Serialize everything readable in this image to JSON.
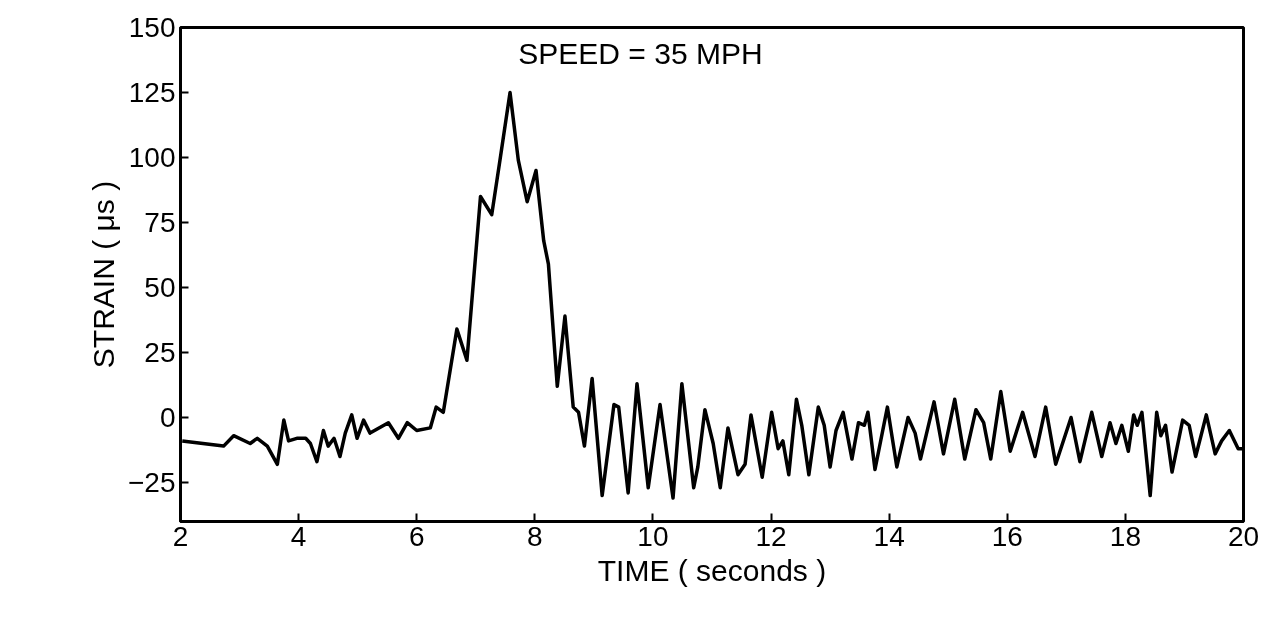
{
  "chart_data": {
    "type": "line",
    "xlabel": "TIME ( seconds )",
    "ylabel": "STRAIN ( μs )",
    "annotations": [
      "SPEED  =  35  MPH"
    ],
    "x": [
      2.03,
      2.73,
      2.9,
      3.18,
      3.3,
      3.47,
      3.64,
      3.75,
      3.83,
      3.97,
      4.12,
      4.2,
      4.31,
      4.42,
      4.5,
      4.6,
      4.7,
      4.79,
      4.9,
      4.99,
      5.1,
      5.21,
      5.52,
      5.69,
      5.84,
      6.0,
      6.23,
      6.33,
      6.45,
      6.68,
      6.85,
      7.08,
      7.27,
      7.41,
      7.58,
      7.72,
      7.87,
      8.02,
      8.15,
      8.23,
      8.38,
      8.51,
      8.65,
      8.74,
      8.84,
      8.97,
      9.14,
      9.34,
      9.42,
      9.58,
      9.73,
      9.92,
      10.12,
      10.34,
      10.49,
      10.69,
      10.76,
      10.88,
      11.02,
      11.14,
      11.27,
      11.44,
      11.56,
      11.66,
      11.85,
      12.01,
      12.12,
      12.2,
      12.3,
      12.43,
      12.52,
      12.64,
      12.8,
      12.9,
      13.0,
      13.1,
      13.22,
      13.37,
      13.48,
      13.58,
      13.64,
      13.76,
      13.97,
      14.13,
      14.32,
      14.44,
      14.53,
      14.76,
      14.92,
      15.11,
      15.28,
      15.47,
      15.6,
      15.72,
      15.89,
      16.05,
      16.26,
      16.47,
      16.65,
      16.82,
      17.08,
      17.23,
      17.43,
      17.6,
      17.74,
      17.84,
      17.94,
      18.05,
      18.14,
      18.2,
      18.28,
      18.42,
      18.53,
      18.6,
      18.68,
      18.79,
      18.97,
      19.08,
      19.19,
      19.37,
      19.52,
      19.63,
      19.76,
      19.91,
      20.0
    ],
    "series": [
      {
        "color": "#000000",
        "values": [
          -9,
          -11,
          -7,
          -10,
          -8,
          -11,
          -18,
          -1,
          -9,
          -8,
          -8,
          -10,
          -17,
          -5,
          -11,
          -8,
          -15,
          -6,
          1,
          -8,
          -1,
          -6,
          -2,
          -8,
          -2,
          -5,
          -4,
          4,
          2,
          34,
          22,
          85,
          78,
          99,
          125,
          99,
          83,
          95,
          68,
          59,
          12,
          39,
          4,
          2,
          -11,
          15,
          -30,
          5,
          4,
          -29,
          13,
          -27,
          5,
          -31,
          13,
          -27,
          -19,
          3,
          -10,
          -27,
          -4,
          -22,
          -18,
          1,
          -23,
          2,
          -12,
          -9,
          -22,
          7,
          -3,
          -22,
          4,
          -3,
          -19,
          -5,
          2,
          -16,
          -2,
          -3,
          2,
          -20,
          4,
          -19,
          0,
          -6,
          -16,
          6,
          -14,
          7,
          -16,
          3,
          -2,
          -16,
          10,
          -13,
          2,
          -15,
          4,
          -18,
          0,
          -17,
          2,
          -15,
          -2,
          -10,
          -3,
          -13,
          1,
          -3,
          2,
          -30,
          2,
          -7,
          -3,
          -21,
          -1,
          -3,
          -15,
          1,
          -14,
          -9,
          -5,
          -12,
          -12
        ]
      }
    ],
    "xlim": [
      2,
      20
    ],
    "ylim": [
      -40,
      150
    ],
    "xticks": [
      2,
      4,
      6,
      8,
      10,
      12,
      14,
      16,
      18,
      20
    ],
    "yticks": [
      -25,
      0,
      25,
      50,
      75,
      100,
      125,
      150
    ],
    "grid": false,
    "marker": "none",
    "line_style": "solid"
  }
}
